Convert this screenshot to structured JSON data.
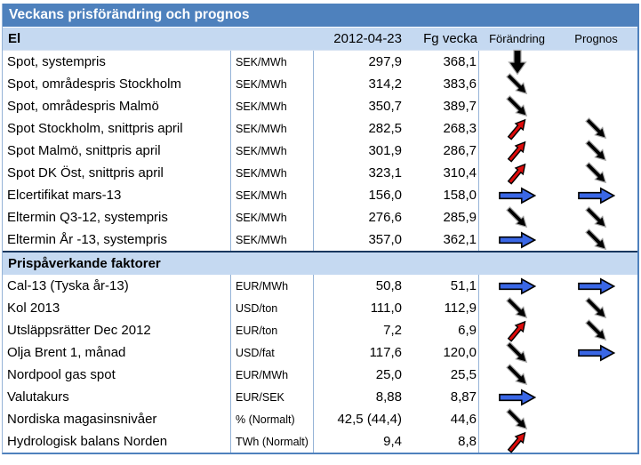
{
  "title": "Veckans prisförändring och prognos",
  "columns": {
    "date": "2012-04-23",
    "prev_week": "Fg vecka",
    "change": "Förändring",
    "forecast": "Prognos"
  },
  "arrow_colors": {
    "black": "#000000",
    "red": "#DE0B0B",
    "blue": "#3A67E6"
  },
  "sections": [
    {
      "label": "El",
      "rows": [
        {
          "name": "Spot, systempris",
          "unit": "SEK/MWh",
          "current": "297,9",
          "previous": "368,1",
          "change": "down",
          "forecast": "none"
        },
        {
          "name": "Spot, områdespris Stockholm",
          "unit": "SEK/MWh",
          "current": "314,2",
          "previous": "383,6",
          "change": "down-right",
          "forecast": "none"
        },
        {
          "name": "Spot, områdespris Malmö",
          "unit": "SEK/MWh",
          "current": "350,7",
          "previous": "389,7",
          "change": "down-right",
          "forecast": "none"
        },
        {
          "name": "Spot Stockholm, snittpris april",
          "unit": "SEK/MWh",
          "current": "282,5",
          "previous": "268,3",
          "change": "up-right",
          "forecast": "down-right"
        },
        {
          "name": "Spot Malmö, snittpris april",
          "unit": "SEK/MWh",
          "current": "301,9",
          "previous": "286,7",
          "change": "up-right",
          "forecast": "down-right"
        },
        {
          "name": "Spot DK Öst, snittpris april",
          "unit": "SEK/MWh",
          "current": "323,1",
          "previous": "310,4",
          "change": "up-right",
          "forecast": "down-right"
        },
        {
          "name": "Elcertifikat mars-13",
          "unit": "SEK/MWh",
          "current": "156,0",
          "previous": "158,0",
          "change": "right",
          "forecast": "right"
        },
        {
          "name": "Eltermin Q3-12, systempris",
          "unit": "SEK/MWh",
          "current": "276,6",
          "previous": "285,9",
          "change": "down-right",
          "forecast": "down-right"
        },
        {
          "name": "Eltermin År -13, systempris",
          "unit": "SEK/MWh",
          "current": "357,0",
          "previous": "362,1",
          "change": "right",
          "forecast": "down-right"
        }
      ]
    },
    {
      "label": "Prispåverkande faktorer",
      "rows": [
        {
          "name": "Cal-13 (Tyska år-13)",
          "unit": "EUR/MWh",
          "current": "50,8",
          "previous": "51,1",
          "change": "right",
          "forecast": "right"
        },
        {
          "name": "Kol 2013",
          "unit": "USD/ton",
          "current": "111,0",
          "previous": "112,9",
          "change": "down-right",
          "forecast": "down-right"
        },
        {
          "name": "Utsläppsrätter Dec 2012",
          "unit": "EUR/ton",
          "current": "7,2",
          "previous": "6,9",
          "change": "up-right",
          "forecast": "down-right"
        },
        {
          "name": "Olja Brent 1, månad",
          "unit": "USD/fat",
          "current": "117,6",
          "previous": "120,0",
          "change": "down-right",
          "forecast": "right"
        },
        {
          "name": "Nordpool gas spot",
          "unit": "EUR/MWh",
          "current": "25,0",
          "previous": "25,5",
          "change": "down-right",
          "forecast": "none"
        },
        {
          "name": "Valutakurs",
          "unit": "EUR/SEK",
          "current": "8,88",
          "previous": "8,87",
          "change": "right",
          "forecast": "none"
        },
        {
          "name": "Nordiska magasinsnivåer",
          "unit": "% (Normalt)",
          "current": "42,5 (44,4)",
          "previous": "44,6",
          "change": "down-right",
          "forecast": "none"
        },
        {
          "name": "Hydrologisk balans Norden",
          "unit": "TWh (Normalt)",
          "current": "9,4",
          "previous": "8,8",
          "change": "up-right",
          "forecast": "none"
        }
      ]
    }
  ]
}
